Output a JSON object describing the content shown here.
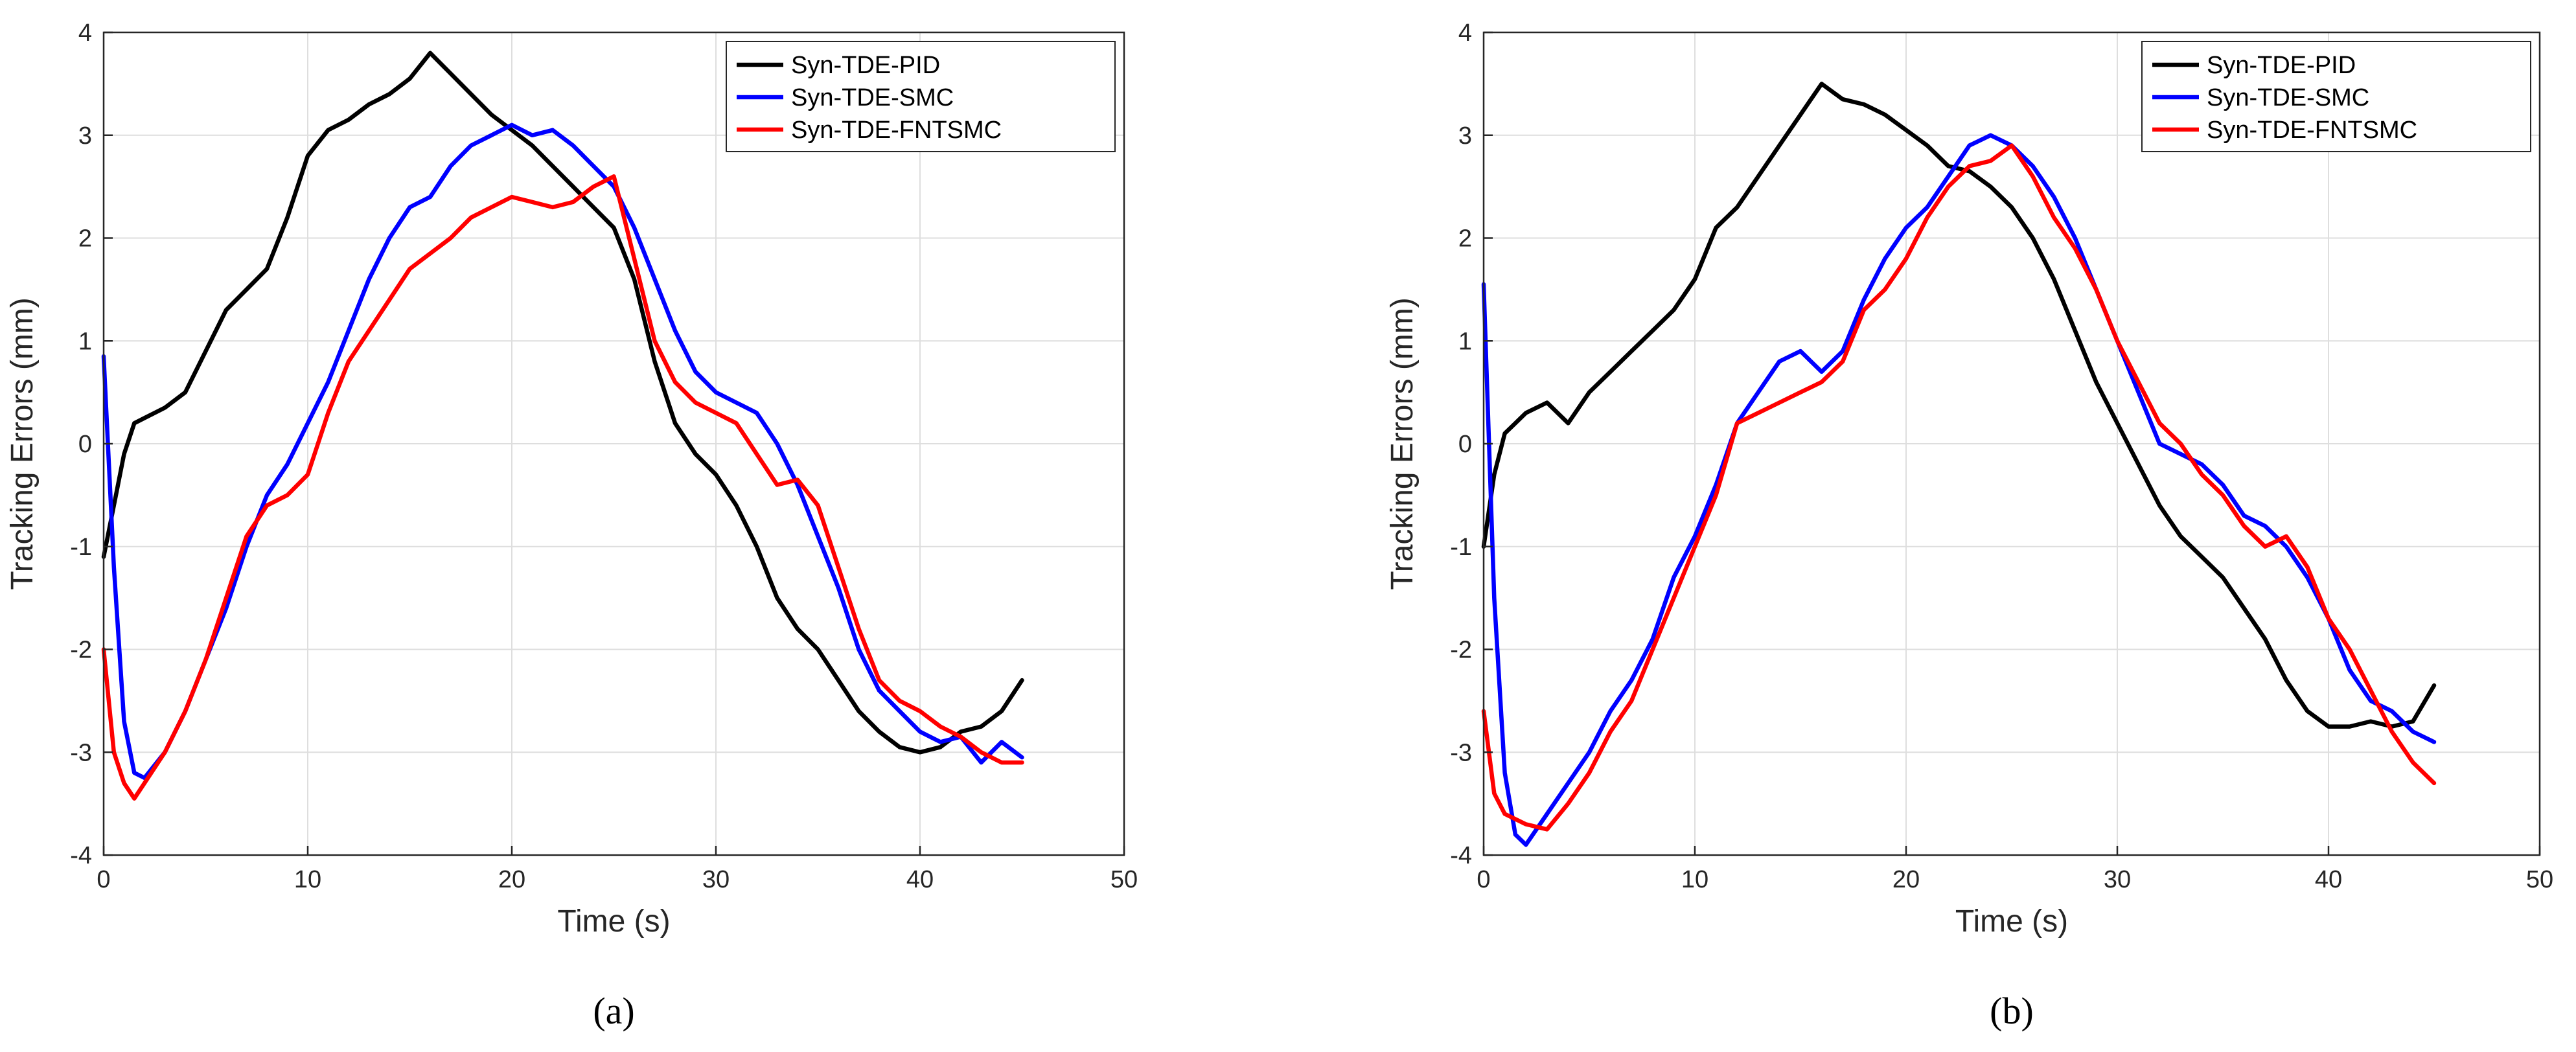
{
  "chart_data": [
    {
      "type": "line",
      "panel_label": "a",
      "caption": "(a)",
      "xlabel": "Time (s)",
      "ylabel": "Tracking Errors (mm)",
      "xlim": [
        0,
        50
      ],
      "ylim": [
        -4,
        4
      ],
      "xticks": [
        0,
        10,
        20,
        30,
        40,
        50
      ],
      "yticks": [
        -4,
        -3,
        -2,
        -1,
        0,
        1,
        2,
        3,
        4
      ],
      "grid": true,
      "legend_position": "top-right",
      "series": [
        {
          "name": "Syn-TDE-PID",
          "color": "#000000",
          "x": [
            0,
            0.5,
            1,
            1.5,
            2,
            3,
            4,
            5,
            6,
            7,
            8,
            9,
            10,
            11,
            12,
            13,
            14,
            15,
            16,
            17,
            18,
            19,
            20,
            21,
            22,
            23,
            24,
            25,
            26,
            27,
            28,
            29,
            30,
            31,
            32,
            33,
            34,
            35,
            36,
            37,
            38,
            39,
            40,
            41,
            42,
            43,
            44,
            45
          ],
          "y": [
            -1.1,
            -0.6,
            -0.1,
            0.2,
            0.25,
            0.35,
            0.5,
            0.9,
            1.3,
            1.5,
            1.7,
            2.2,
            2.8,
            3.05,
            3.15,
            3.3,
            3.4,
            3.55,
            3.8,
            3.6,
            3.4,
            3.2,
            3.05,
            2.9,
            2.7,
            2.5,
            2.3,
            2.1,
            1.6,
            0.8,
            0.2,
            -0.1,
            -0.3,
            -0.6,
            -1.0,
            -1.5,
            -1.8,
            -2.0,
            -2.3,
            -2.6,
            -2.8,
            -2.95,
            -3.0,
            -2.95,
            -2.8,
            -2.75,
            -2.6,
            -2.3
          ]
        },
        {
          "name": "Syn-TDE-SMC",
          "color": "#0000ff",
          "x": [
            0,
            0.5,
            1,
            1.5,
            2,
            3,
            4,
            5,
            6,
            7,
            8,
            9,
            10,
            11,
            12,
            13,
            14,
            15,
            16,
            17,
            18,
            19,
            20,
            21,
            22,
            23,
            24,
            25,
            26,
            27,
            28,
            29,
            30,
            31,
            32,
            33,
            34,
            35,
            36,
            37,
            38,
            39,
            40,
            41,
            42,
            43,
            44,
            45
          ],
          "y": [
            0.85,
            -1.2,
            -2.7,
            -3.2,
            -3.25,
            -3.0,
            -2.6,
            -2.1,
            -1.6,
            -1.0,
            -0.5,
            -0.2,
            0.2,
            0.6,
            1.1,
            1.6,
            2.0,
            2.3,
            2.4,
            2.7,
            2.9,
            3.0,
            3.1,
            3.0,
            3.05,
            2.9,
            2.7,
            2.5,
            2.1,
            1.6,
            1.1,
            0.7,
            0.5,
            0.4,
            0.3,
            0.0,
            -0.4,
            -0.9,
            -1.4,
            -2.0,
            -2.4,
            -2.6,
            -2.8,
            -2.9,
            -2.85,
            -3.1,
            -2.9,
            -3.05
          ]
        },
        {
          "name": "Syn-TDE-FNTSMC",
          "color": "#ff0000",
          "x": [
            0,
            0.5,
            1,
            1.5,
            2,
            3,
            4,
            5,
            6,
            7,
            8,
            9,
            10,
            11,
            12,
            13,
            14,
            15,
            16,
            17,
            18,
            19,
            20,
            21,
            22,
            23,
            24,
            25,
            26,
            27,
            28,
            29,
            30,
            31,
            32,
            33,
            34,
            35,
            36,
            37,
            38,
            39,
            40,
            41,
            42,
            43,
            44,
            45
          ],
          "y": [
            -2.0,
            -3.0,
            -3.3,
            -3.45,
            -3.3,
            -3.0,
            -2.6,
            -2.1,
            -1.5,
            -0.9,
            -0.6,
            -0.5,
            -0.3,
            0.3,
            0.8,
            1.1,
            1.4,
            1.7,
            1.85,
            2.0,
            2.2,
            2.3,
            2.4,
            2.35,
            2.3,
            2.35,
            2.5,
            2.6,
            1.8,
            1.0,
            0.6,
            0.4,
            0.3,
            0.2,
            -0.1,
            -0.4,
            -0.35,
            -0.6,
            -1.2,
            -1.8,
            -2.3,
            -2.5,
            -2.6,
            -2.75,
            -2.85,
            -3.0,
            -3.1,
            -3.1
          ]
        }
      ]
    },
    {
      "type": "line",
      "panel_label": "b",
      "caption": "(b)",
      "xlabel": "Time (s)",
      "ylabel": "Tracking Errors (mm)",
      "xlim": [
        0,
        50
      ],
      "ylim": [
        -4,
        4
      ],
      "xticks": [
        0,
        10,
        20,
        30,
        40,
        50
      ],
      "yticks": [
        -4,
        -3,
        -2,
        -1,
        0,
        1,
        2,
        3,
        4
      ],
      "grid": true,
      "legend_position": "top-right",
      "series": [
        {
          "name": "Syn-TDE-PID",
          "color": "#000000",
          "x": [
            0,
            0.5,
            1,
            1.5,
            2,
            3,
            4,
            5,
            6,
            7,
            8,
            9,
            10,
            11,
            12,
            13,
            14,
            15,
            16,
            17,
            18,
            19,
            20,
            21,
            22,
            23,
            24,
            25,
            26,
            27,
            28,
            29,
            30,
            31,
            32,
            33,
            34,
            35,
            36,
            37,
            38,
            39,
            40,
            41,
            42,
            43,
            44,
            45
          ],
          "y": [
            -1.0,
            -0.3,
            0.1,
            0.2,
            0.3,
            0.4,
            0.2,
            0.5,
            0.7,
            0.9,
            1.1,
            1.3,
            1.6,
            2.1,
            2.3,
            2.6,
            2.9,
            3.2,
            3.5,
            3.35,
            3.3,
            3.2,
            3.05,
            2.9,
            2.7,
            2.65,
            2.5,
            2.3,
            2.0,
            1.6,
            1.1,
            0.6,
            0.2,
            -0.2,
            -0.6,
            -0.9,
            -1.1,
            -1.3,
            -1.6,
            -1.9,
            -2.3,
            -2.6,
            -2.75,
            -2.75,
            -2.7,
            -2.75,
            -2.7,
            -2.35
          ]
        },
        {
          "name": "Syn-TDE-SMC",
          "color": "#0000ff",
          "x": [
            0,
            0.5,
            1,
            1.5,
            2,
            3,
            4,
            5,
            6,
            7,
            8,
            9,
            10,
            11,
            12,
            13,
            14,
            15,
            16,
            17,
            18,
            19,
            20,
            21,
            22,
            23,
            24,
            25,
            26,
            27,
            28,
            29,
            30,
            31,
            32,
            33,
            34,
            35,
            36,
            37,
            38,
            39,
            40,
            41,
            42,
            43,
            44,
            45
          ],
          "y": [
            1.55,
            -1.5,
            -3.2,
            -3.8,
            -3.9,
            -3.6,
            -3.3,
            -3.0,
            -2.6,
            -2.3,
            -1.9,
            -1.3,
            -0.9,
            -0.4,
            0.2,
            0.5,
            0.8,
            0.9,
            0.7,
            0.9,
            1.4,
            1.8,
            2.1,
            2.3,
            2.6,
            2.9,
            3.0,
            2.9,
            2.7,
            2.4,
            2.0,
            1.5,
            1.0,
            0.5,
            0.0,
            -0.1,
            -0.2,
            -0.4,
            -0.7,
            -0.8,
            -1.0,
            -1.3,
            -1.7,
            -2.2,
            -2.5,
            -2.6,
            -2.8,
            -2.9
          ]
        },
        {
          "name": "Syn-TDE-FNTSMC",
          "color": "#ff0000",
          "x": [
            0,
            0.5,
            1,
            1.5,
            2,
            3,
            4,
            5,
            6,
            7,
            8,
            9,
            10,
            11,
            12,
            13,
            14,
            15,
            16,
            17,
            18,
            19,
            20,
            21,
            22,
            23,
            24,
            25,
            26,
            27,
            28,
            29,
            30,
            31,
            32,
            33,
            34,
            35,
            36,
            37,
            38,
            39,
            40,
            41,
            42,
            43,
            44,
            45
          ],
          "y": [
            -2.6,
            -3.4,
            -3.6,
            -3.65,
            -3.7,
            -3.75,
            -3.5,
            -3.2,
            -2.8,
            -2.5,
            -2.0,
            -1.5,
            -1.0,
            -0.5,
            0.2,
            0.3,
            0.4,
            0.5,
            0.6,
            0.8,
            1.3,
            1.5,
            1.8,
            2.2,
            2.5,
            2.7,
            2.75,
            2.9,
            2.6,
            2.2,
            1.9,
            1.5,
            1.0,
            0.6,
            0.2,
            0.0,
            -0.3,
            -0.5,
            -0.8,
            -1.0,
            -0.9,
            -1.2,
            -1.7,
            -2.0,
            -2.4,
            -2.8,
            -3.1,
            -3.3
          ]
        }
      ]
    }
  ]
}
